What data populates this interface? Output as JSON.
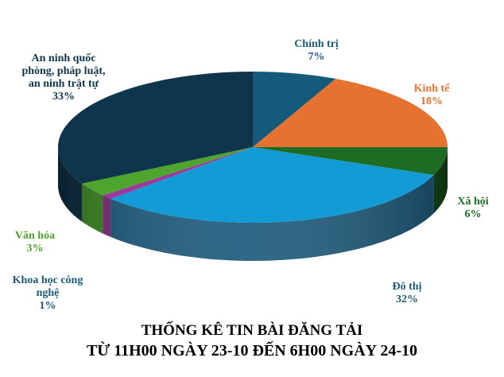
{
  "chart_data": {
    "type": "pie",
    "style": "3d",
    "title": [
      "THỐNG KÊ TIN BÀI ĐĂNG TẢI",
      "TỪ 11H00 NGÀY 23-10 ĐẾN 6H00 NGÀY 24-10"
    ],
    "slices": [
      {
        "label": [
          "Chính trị"
        ],
        "value": 7,
        "pct": "7%",
        "color": "#155a7a",
        "side": "#0d3d55",
        "text_color": "#1a5a7a"
      },
      {
        "label": [
          "Kinh tế"
        ],
        "value": 18,
        "pct": "18%",
        "color": "#e57230",
        "side": "#a64c1c",
        "text_color": "#e57230"
      },
      {
        "label": [
          "Xã hội"
        ],
        "value": 6,
        "pct": "6%",
        "color": "#1e6b24",
        "side": "#134818",
        "text_color": "#1e6b24"
      },
      {
        "label": [
          "Đô thị"
        ],
        "value": 32,
        "pct": "32%",
        "color": "#139bd6",
        "side": "#1b5a7c",
        "text_color": "#1a5a7a"
      },
      {
        "label": [
          "Khoa học công",
          "nghệ"
        ],
        "value": 1,
        "pct": "1%",
        "color": "#9b3a9b",
        "side": "#7a2a7a",
        "text_color": "#1a5a7a"
      },
      {
        "label": [
          "Văn hóa"
        ],
        "value": 3,
        "pct": "3%",
        "color": "#4ea52e",
        "side": "#3d8a22",
        "text_color": "#4ea52e"
      },
      {
        "label": [
          "An ninh quốc",
          "phòng, pháp luật,",
          "an ninh trật tự"
        ],
        "value": 33,
        "pct": "33%",
        "color": "#0e354b",
        "side": "#0b2c3f",
        "text_color": "#0e354b"
      }
    ]
  }
}
